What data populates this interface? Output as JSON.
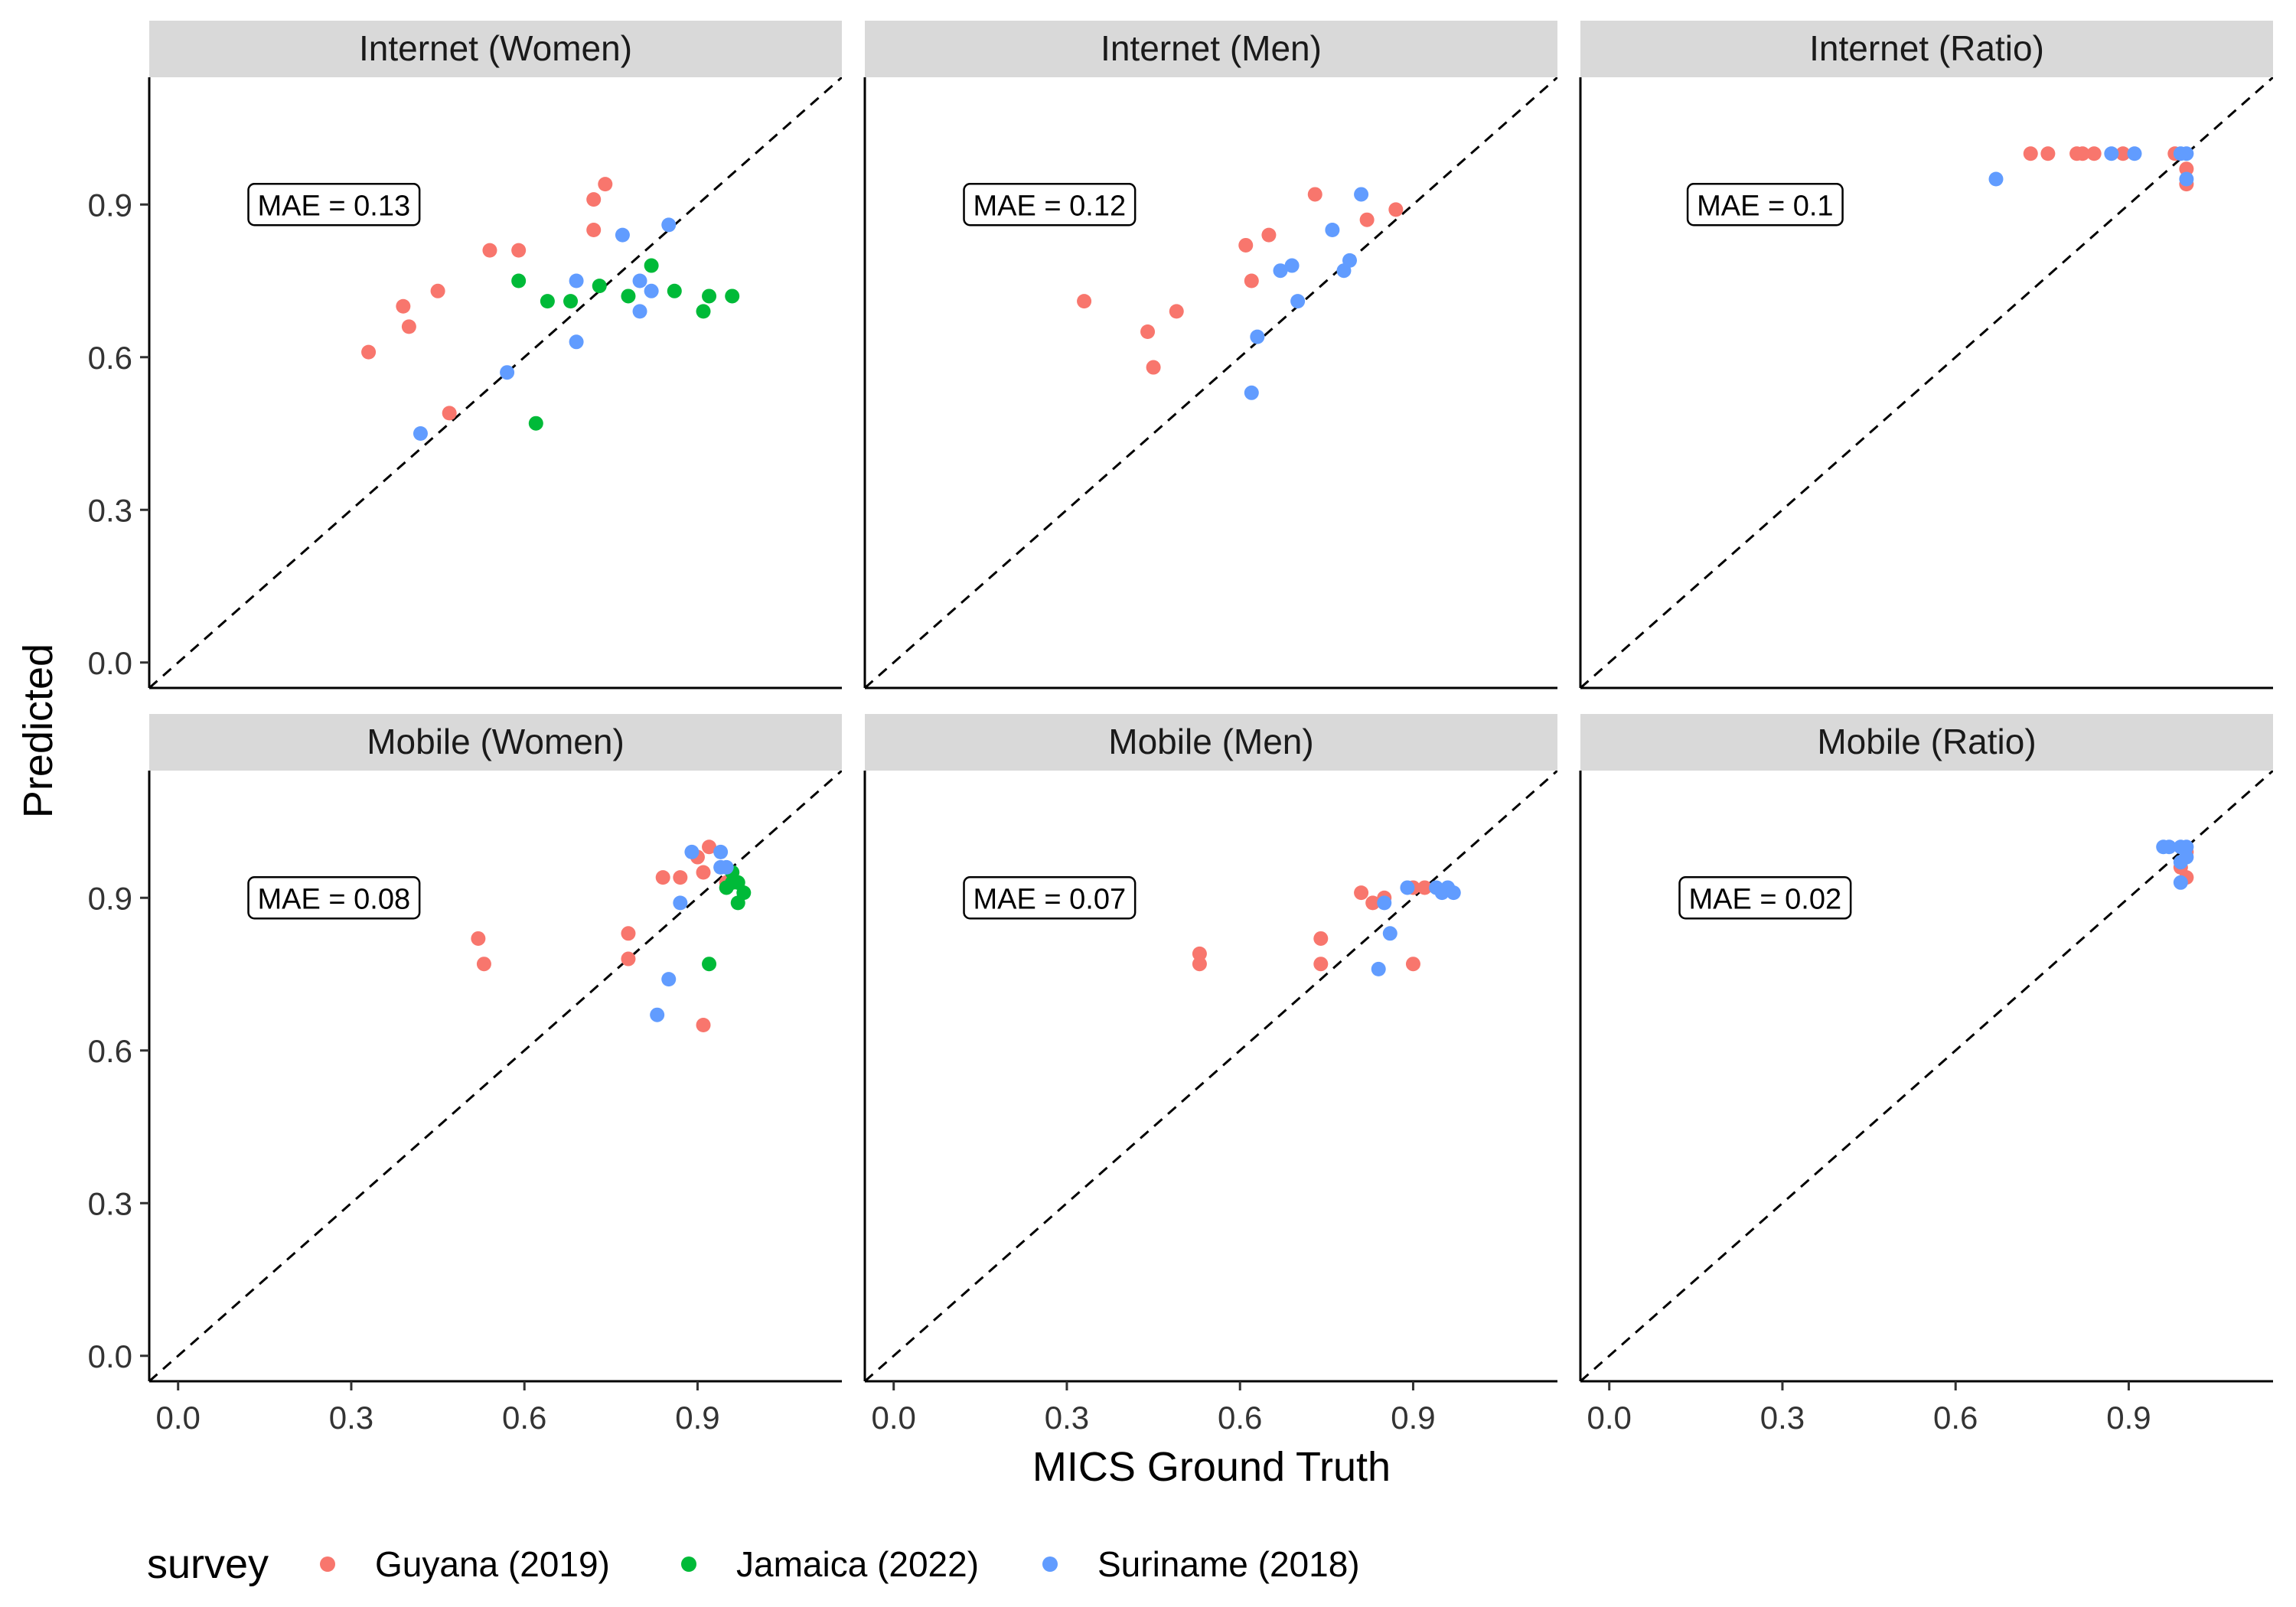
{
  "chart_data": {
    "type": "scatter",
    "xlabel": "MICS Ground Truth",
    "ylabel": "Predicted",
    "xlim": [
      -0.05,
      1.15
    ],
    "ylim": [
      -0.05,
      1.15
    ],
    "x_ticks": [
      "0.0",
      "0.3",
      "0.6",
      "0.9"
    ],
    "y_ticks": [
      "0.0",
      "0.3",
      "0.6",
      "0.9"
    ],
    "reference_line": "y = x (dashed)",
    "legend": {
      "title": "survey",
      "position": "bottom",
      "entries": [
        {
          "label": "Guyana (2019)",
          "color": "#F8766D"
        },
        {
          "label": "Jamaica (2022)",
          "color": "#00BA38"
        },
        {
          "label": "Suriname (2018)",
          "color": "#619CFF"
        }
      ]
    },
    "panels": [
      {
        "title": "Internet (Women)",
        "mae_label": "MAE = 0.13",
        "series": [
          {
            "name": "Guyana (2019)",
            "points": [
              [
                0.33,
                0.61
              ],
              [
                0.39,
                0.7
              ],
              [
                0.4,
                0.66
              ],
              [
                0.45,
                0.73
              ],
              [
                0.47,
                0.49
              ],
              [
                0.54,
                0.81
              ],
              [
                0.59,
                0.81
              ],
              [
                0.72,
                0.91
              ],
              [
                0.72,
                0.85
              ],
              [
                0.74,
                0.94
              ]
            ]
          },
          {
            "name": "Jamaica (2022)",
            "points": [
              [
                0.59,
                0.75
              ],
              [
                0.62,
                0.47
              ],
              [
                0.64,
                0.71
              ],
              [
                0.68,
                0.71
              ],
              [
                0.73,
                0.74
              ],
              [
                0.78,
                0.72
              ],
              [
                0.82,
                0.78
              ],
              [
                0.86,
                0.73
              ],
              [
                0.91,
                0.69
              ],
              [
                0.92,
                0.72
              ],
              [
                0.96,
                0.72
              ]
            ]
          },
          {
            "name": "Suriname (2018)",
            "points": [
              [
                0.42,
                0.45
              ],
              [
                0.57,
                0.57
              ],
              [
                0.69,
                0.63
              ],
              [
                0.69,
                0.75
              ],
              [
                0.77,
                0.84
              ],
              [
                0.8,
                0.69
              ],
              [
                0.8,
                0.75
              ],
              [
                0.82,
                0.73
              ],
              [
                0.85,
                0.86
              ]
            ]
          }
        ]
      },
      {
        "title": "Internet (Men)",
        "mae_label": "MAE = 0.12",
        "series": [
          {
            "name": "Guyana (2019)",
            "points": [
              [
                0.33,
                0.71
              ],
              [
                0.44,
                0.65
              ],
              [
                0.45,
                0.58
              ],
              [
                0.49,
                0.69
              ],
              [
                0.61,
                0.82
              ],
              [
                0.62,
                0.75
              ],
              [
                0.65,
                0.84
              ],
              [
                0.73,
                0.92
              ],
              [
                0.82,
                0.87
              ],
              [
                0.87,
                0.89
              ]
            ]
          },
          {
            "name": "Suriname (2018)",
            "points": [
              [
                0.62,
                0.53
              ],
              [
                0.63,
                0.64
              ],
              [
                0.67,
                0.77
              ],
              [
                0.69,
                0.78
              ],
              [
                0.7,
                0.71
              ],
              [
                0.76,
                0.85
              ],
              [
                0.78,
                0.77
              ],
              [
                0.79,
                0.79
              ],
              [
                0.81,
                0.92
              ]
            ]
          }
        ]
      },
      {
        "title": "Internet (Ratio)",
        "mae_label": "MAE = 0.1",
        "series": [
          {
            "name": "Guyana (2019)",
            "points": [
              [
                0.73,
                1.0
              ],
              [
                0.76,
                1.0
              ],
              [
                0.81,
                1.0
              ],
              [
                0.82,
                1.0
              ],
              [
                0.84,
                1.0
              ],
              [
                0.89,
                1.0
              ],
              [
                0.98,
                1.0
              ],
              [
                1.0,
                0.97
              ],
              [
                1.0,
                0.94
              ]
            ]
          },
          {
            "name": "Suriname (2018)",
            "points": [
              [
                0.67,
                0.95
              ],
              [
                0.87,
                1.0
              ],
              [
                0.91,
                1.0
              ],
              [
                0.99,
                1.0
              ],
              [
                1.0,
                1.0
              ],
              [
                1.0,
                0.95
              ]
            ]
          }
        ]
      },
      {
        "title": "Mobile (Women)",
        "mae_label": "MAE = 0.08",
        "series": [
          {
            "name": "Guyana (2019)",
            "points": [
              [
                0.52,
                0.82
              ],
              [
                0.53,
                0.77
              ],
              [
                0.78,
                0.83
              ],
              [
                0.78,
                0.78
              ],
              [
                0.84,
                0.94
              ],
              [
                0.87,
                0.94
              ],
              [
                0.9,
                0.98
              ],
              [
                0.91,
                0.65
              ],
              [
                0.91,
                0.95
              ],
              [
                0.92,
                1.0
              ],
              [
                0.95,
                0.93
              ]
            ]
          },
          {
            "name": "Jamaica (2022)",
            "points": [
              [
                0.92,
                0.77
              ],
              [
                0.95,
                0.92
              ],
              [
                0.96,
                0.93
              ],
              [
                0.96,
                0.95
              ],
              [
                0.97,
                0.89
              ],
              [
                0.97,
                0.93
              ],
              [
                0.98,
                0.91
              ]
            ]
          },
          {
            "name": "Suriname (2018)",
            "points": [
              [
                0.83,
                0.67
              ],
              [
                0.85,
                0.74
              ],
              [
                0.87,
                0.89
              ],
              [
                0.89,
                0.99
              ],
              [
                0.94,
                0.99
              ],
              [
                0.94,
                0.96
              ],
              [
                0.95,
                0.96
              ]
            ]
          }
        ]
      },
      {
        "title": "Mobile (Men)",
        "mae_label": "MAE = 0.07",
        "series": [
          {
            "name": "Guyana (2019)",
            "points": [
              [
                0.53,
                0.79
              ],
              [
                0.53,
                0.77
              ],
              [
                0.74,
                0.82
              ],
              [
                0.74,
                0.77
              ],
              [
                0.81,
                0.91
              ],
              [
                0.83,
                0.89
              ],
              [
                0.85,
                0.9
              ],
              [
                0.9,
                0.77
              ],
              [
                0.9,
                0.92
              ],
              [
                0.92,
                0.92
              ]
            ]
          },
          {
            "name": "Suriname (2018)",
            "points": [
              [
                0.84,
                0.76
              ],
              [
                0.85,
                0.89
              ],
              [
                0.86,
                0.83
              ],
              [
                0.89,
                0.92
              ],
              [
                0.94,
                0.92
              ],
              [
                0.95,
                0.91
              ],
              [
                0.96,
                0.92
              ],
              [
                0.97,
                0.91
              ]
            ]
          }
        ]
      },
      {
        "title": "Mobile (Ratio)",
        "mae_label": "MAE = 0.02",
        "series": [
          {
            "name": "Guyana (2019)",
            "points": [
              [
                0.99,
                0.96
              ],
              [
                1.0,
                0.94
              ],
              [
                1.0,
                0.99
              ]
            ]
          },
          {
            "name": "Suriname (2018)",
            "points": [
              [
                0.96,
                1.0
              ],
              [
                0.97,
                1.0
              ],
              [
                0.99,
                1.0
              ],
              [
                0.99,
                0.97
              ],
              [
                0.99,
                0.93
              ],
              [
                1.0,
                1.0
              ],
              [
                1.0,
                0.98
              ]
            ]
          }
        ]
      }
    ]
  }
}
